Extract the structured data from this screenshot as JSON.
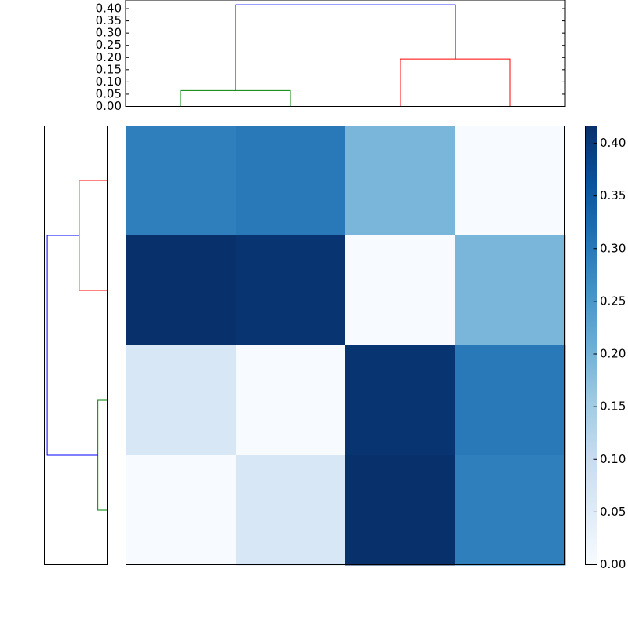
{
  "chart_data": {
    "type": "clustered-heatmap",
    "matrix": [
      [
        0.29,
        0.3,
        0.194,
        0
      ],
      [
        0.416,
        0.41,
        0,
        0.194
      ],
      [
        0.0645,
        0,
        0.41,
        0.3
      ],
      [
        0,
        0.0645,
        0.416,
        0.29
      ]
    ],
    "colormap": "Blues",
    "clim": [
      0,
      0.4164
    ],
    "colorbar_ticks": [
      {
        "value": 0,
        "label": "0.00"
      },
      {
        "value": 0.05,
        "label": "0.05"
      },
      {
        "value": 0.1,
        "label": "0.10"
      },
      {
        "value": 0.15,
        "label": "0.15"
      },
      {
        "value": 0.2,
        "label": "0.20"
      },
      {
        "value": 0.25,
        "label": "0.25"
      },
      {
        "value": 0.3,
        "label": "0.30"
      },
      {
        "value": 0.35,
        "label": "0.35"
      },
      {
        "value": 0.4,
        "label": "0.40"
      }
    ],
    "linkage": [
      [
        0,
        1,
        0.0645,
        2
      ],
      [
        2,
        3,
        0.194,
        2
      ],
      [
        4,
        5,
        0.416,
        4
      ]
    ],
    "link_colors": [
      "#008000",
      "#ff0000",
      "#0000ff"
    ],
    "ylim": [
      0,
      0.4355
    ],
    "yticks": [
      {
        "value": 0,
        "label": "0.00"
      },
      {
        "value": 0.05,
        "label": "0.05"
      },
      {
        "value": 0.1,
        "label": "0.10"
      },
      {
        "value": 0.15,
        "label": "0.15"
      },
      {
        "value": 0.2,
        "label": "0.20"
      },
      {
        "value": 0.25,
        "label": "0.25"
      },
      {
        "value": 0.3,
        "label": "0.30"
      },
      {
        "value": 0.35,
        "label": "0.35"
      },
      {
        "value": 0.4,
        "label": "0.40"
      }
    ]
  }
}
